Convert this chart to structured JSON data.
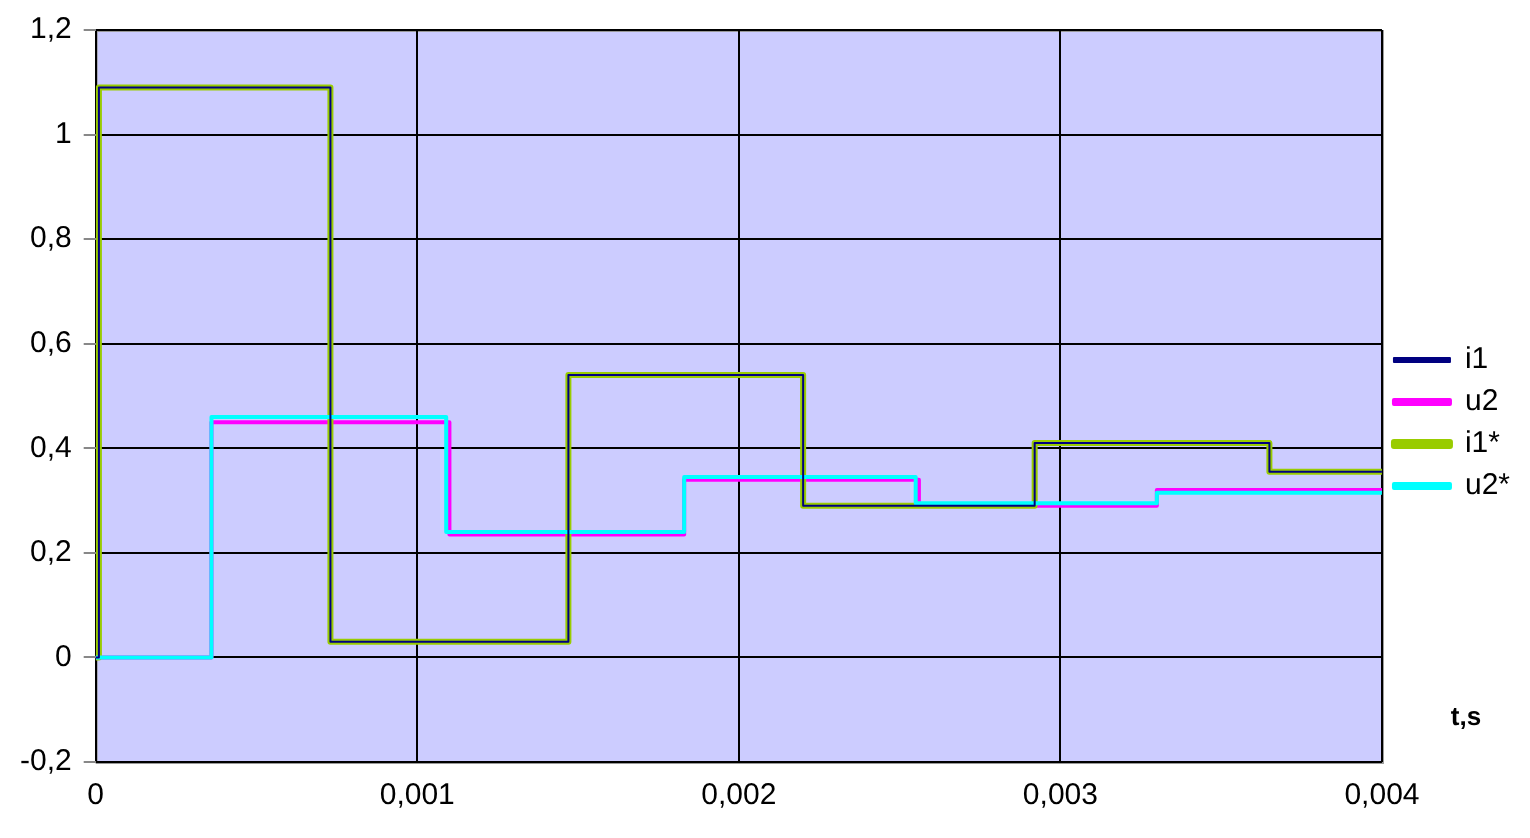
{
  "chart_data": {
    "type": "step",
    "xlabel": "t,s",
    "xlim": [
      0,
      0.004
    ],
    "xticks": [
      0,
      {
        "value": 0.001,
        "label": "0,001"
      },
      {
        "value": 0.002,
        "label": "0,002"
      },
      {
        "value": 0.003,
        "label": "0,003"
      },
      {
        "value": 0.004,
        "label": "0,004"
      }
    ],
    "ylim": [
      -0.2,
      1.2
    ],
    "yticks": [
      {
        "value": -0.2,
        "label": "-0,2"
      },
      0,
      {
        "value": 0.2,
        "label": "0,2"
      },
      {
        "value": 0.4,
        "label": "0,4"
      },
      {
        "value": 0.6,
        "label": "0,6"
      },
      {
        "value": 0.8,
        "label": "0,8"
      },
      1,
      {
        "value": 1.2,
        "label": "1,2"
      }
    ],
    "grid": true,
    "legend": "right",
    "marker": "none",
    "line_style": "solid",
    "series": [
      {
        "name": "i1",
        "color": "#000080",
        "x": [
          0,
          1e-05,
          0.00073,
          0.00147,
          0.0022,
          0.00292,
          0.00365,
          0.004
        ],
        "values": [
          0,
          1.09,
          0.03,
          0.54,
          0.29,
          0.41,
          0.355,
          0.355
        ]
      },
      {
        "name": "u2",
        "color": "#ff00ff",
        "x": [
          0,
          0.00036,
          0.0011,
          0.00183,
          0.00256,
          0.0033,
          0.004
        ],
        "values": [
          0,
          0.45,
          0.235,
          0.34,
          0.29,
          0.32,
          0.32
        ]
      },
      {
        "name": "i1*",
        "color": "#99cc00",
        "x": [
          0,
          1e-05,
          0.00073,
          0.00147,
          0.0022,
          0.00292,
          0.00365,
          0.004
        ],
        "values": [
          0,
          1.09,
          0.03,
          0.54,
          0.29,
          0.41,
          0.355,
          0.355
        ]
      },
      {
        "name": "u2*",
        "color": "#00ffff",
        "x": [
          0,
          0.00036,
          0.00109,
          0.00183,
          0.00255,
          0.0033,
          0.004
        ],
        "values": [
          0,
          0.46,
          0.24,
          0.345,
          0.295,
          0.315,
          0.315
        ]
      }
    ]
  }
}
